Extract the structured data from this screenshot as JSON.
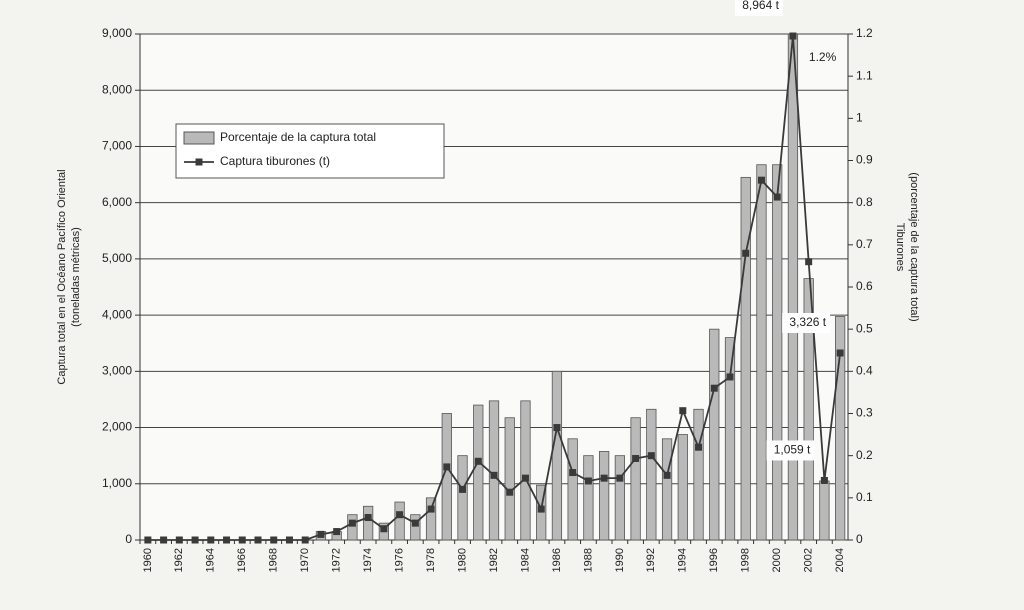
{
  "chart_data": {
    "type": "combo",
    "categories": [
      "1960",
      null,
      "1962",
      null,
      "1964",
      null,
      "1966",
      null,
      "1968",
      null,
      "1970",
      null,
      "1972",
      null,
      "1974",
      null,
      "1976",
      null,
      "1978",
      null,
      "1980",
      null,
      "1982",
      null,
      "1984",
      null,
      "1986",
      null,
      "1988",
      null,
      "1990",
      null,
      "1992",
      null,
      "1994",
      null,
      "1996",
      null,
      "1998",
      null,
      "2000",
      null,
      "2002",
      null,
      "2004"
    ],
    "series": [
      {
        "name": "Porcentaje de la captura total",
        "type": "bar",
        "axis": "y2",
        "color": "#b9b9b9",
        "values": [
          0,
          0,
          0,
          0,
          0,
          0,
          0,
          0,
          0,
          0,
          0,
          0.02,
          0.02,
          0.06,
          0.08,
          0.04,
          0.09,
          0.06,
          0.1,
          0.3,
          0.2,
          0.32,
          0.33,
          0.29,
          0.33,
          0.13,
          0.4,
          0.24,
          0.2,
          0.21,
          0.2,
          0.29,
          0.31,
          0.24,
          0.25,
          0.31,
          0.5,
          0.48,
          0.86,
          0.89,
          0.89,
          1.2,
          0.62,
          0.14,
          0.53
        ],
        "value_labels": [
          null,
          null,
          null,
          null,
          null,
          null,
          null,
          null,
          null,
          null,
          null,
          null,
          null,
          null,
          null,
          null,
          null,
          null,
          null,
          null,
          null,
          null,
          null,
          null,
          null,
          null,
          null,
          null,
          null,
          null,
          null,
          null,
          null,
          null,
          null,
          null,
          null,
          null,
          null,
          null,
          null,
          "1.2%",
          null,
          null,
          null
        ]
      },
      {
        "name": "Captura tiburones (t)",
        "type": "line",
        "color": "#3a3a3a",
        "values": [
          0,
          0,
          0,
          0,
          0,
          0,
          0,
          0,
          0,
          0,
          0,
          100,
          150,
          300,
          400,
          200,
          450,
          300,
          550,
          1300,
          900,
          1400,
          1150,
          850,
          1100,
          550,
          2000,
          1200,
          1050,
          1100,
          1100,
          1450,
          1500,
          1150,
          2300,
          1650,
          2700,
          2900,
          5100,
          6400,
          6100,
          8964,
          4950,
          1059,
          3326
        ],
        "value_labels": [
          null,
          null,
          null,
          null,
          null,
          null,
          null,
          null,
          null,
          null,
          null,
          null,
          null,
          null,
          null,
          null,
          null,
          null,
          null,
          null,
          null,
          null,
          null,
          null,
          null,
          null,
          null,
          null,
          null,
          null,
          null,
          null,
          null,
          null,
          null,
          null,
          null,
          null,
          null,
          null,
          null,
          "8,964 t",
          null,
          "1,059 t",
          "3,326 t"
        ]
      }
    ],
    "ylabel": [
      "Captura total en el Océano Pacífico Oriental",
      "(toneladas métricas)"
    ],
    "y2label": [
      "Tiburones",
      "(porcentaje de la captura total)"
    ],
    "ylim": [
      0,
      9000
    ],
    "yticks": [
      0,
      {
        "value": 1000,
        "label": "1,000"
      },
      {
        "value": 2000,
        "label": "2,000"
      },
      {
        "value": 3000,
        "label": "3,000"
      },
      {
        "value": 4000,
        "label": "4,000"
      },
      {
        "value": 5000,
        "label": "5,000"
      },
      {
        "value": 6000,
        "label": "6,000"
      },
      {
        "value": 7000,
        "label": "7,000"
      },
      {
        "value": 8000,
        "label": "8,000"
      },
      {
        "value": 9000,
        "label": "9,000"
      }
    ],
    "y2lim": [
      0,
      1.2
    ],
    "y2ticks": [
      0,
      0.1,
      0.2,
      0.3,
      0.4,
      0.5,
      0.6,
      0.7,
      0.8,
      0.9,
      1,
      1.1,
      1.2
    ],
    "grid": true
  }
}
